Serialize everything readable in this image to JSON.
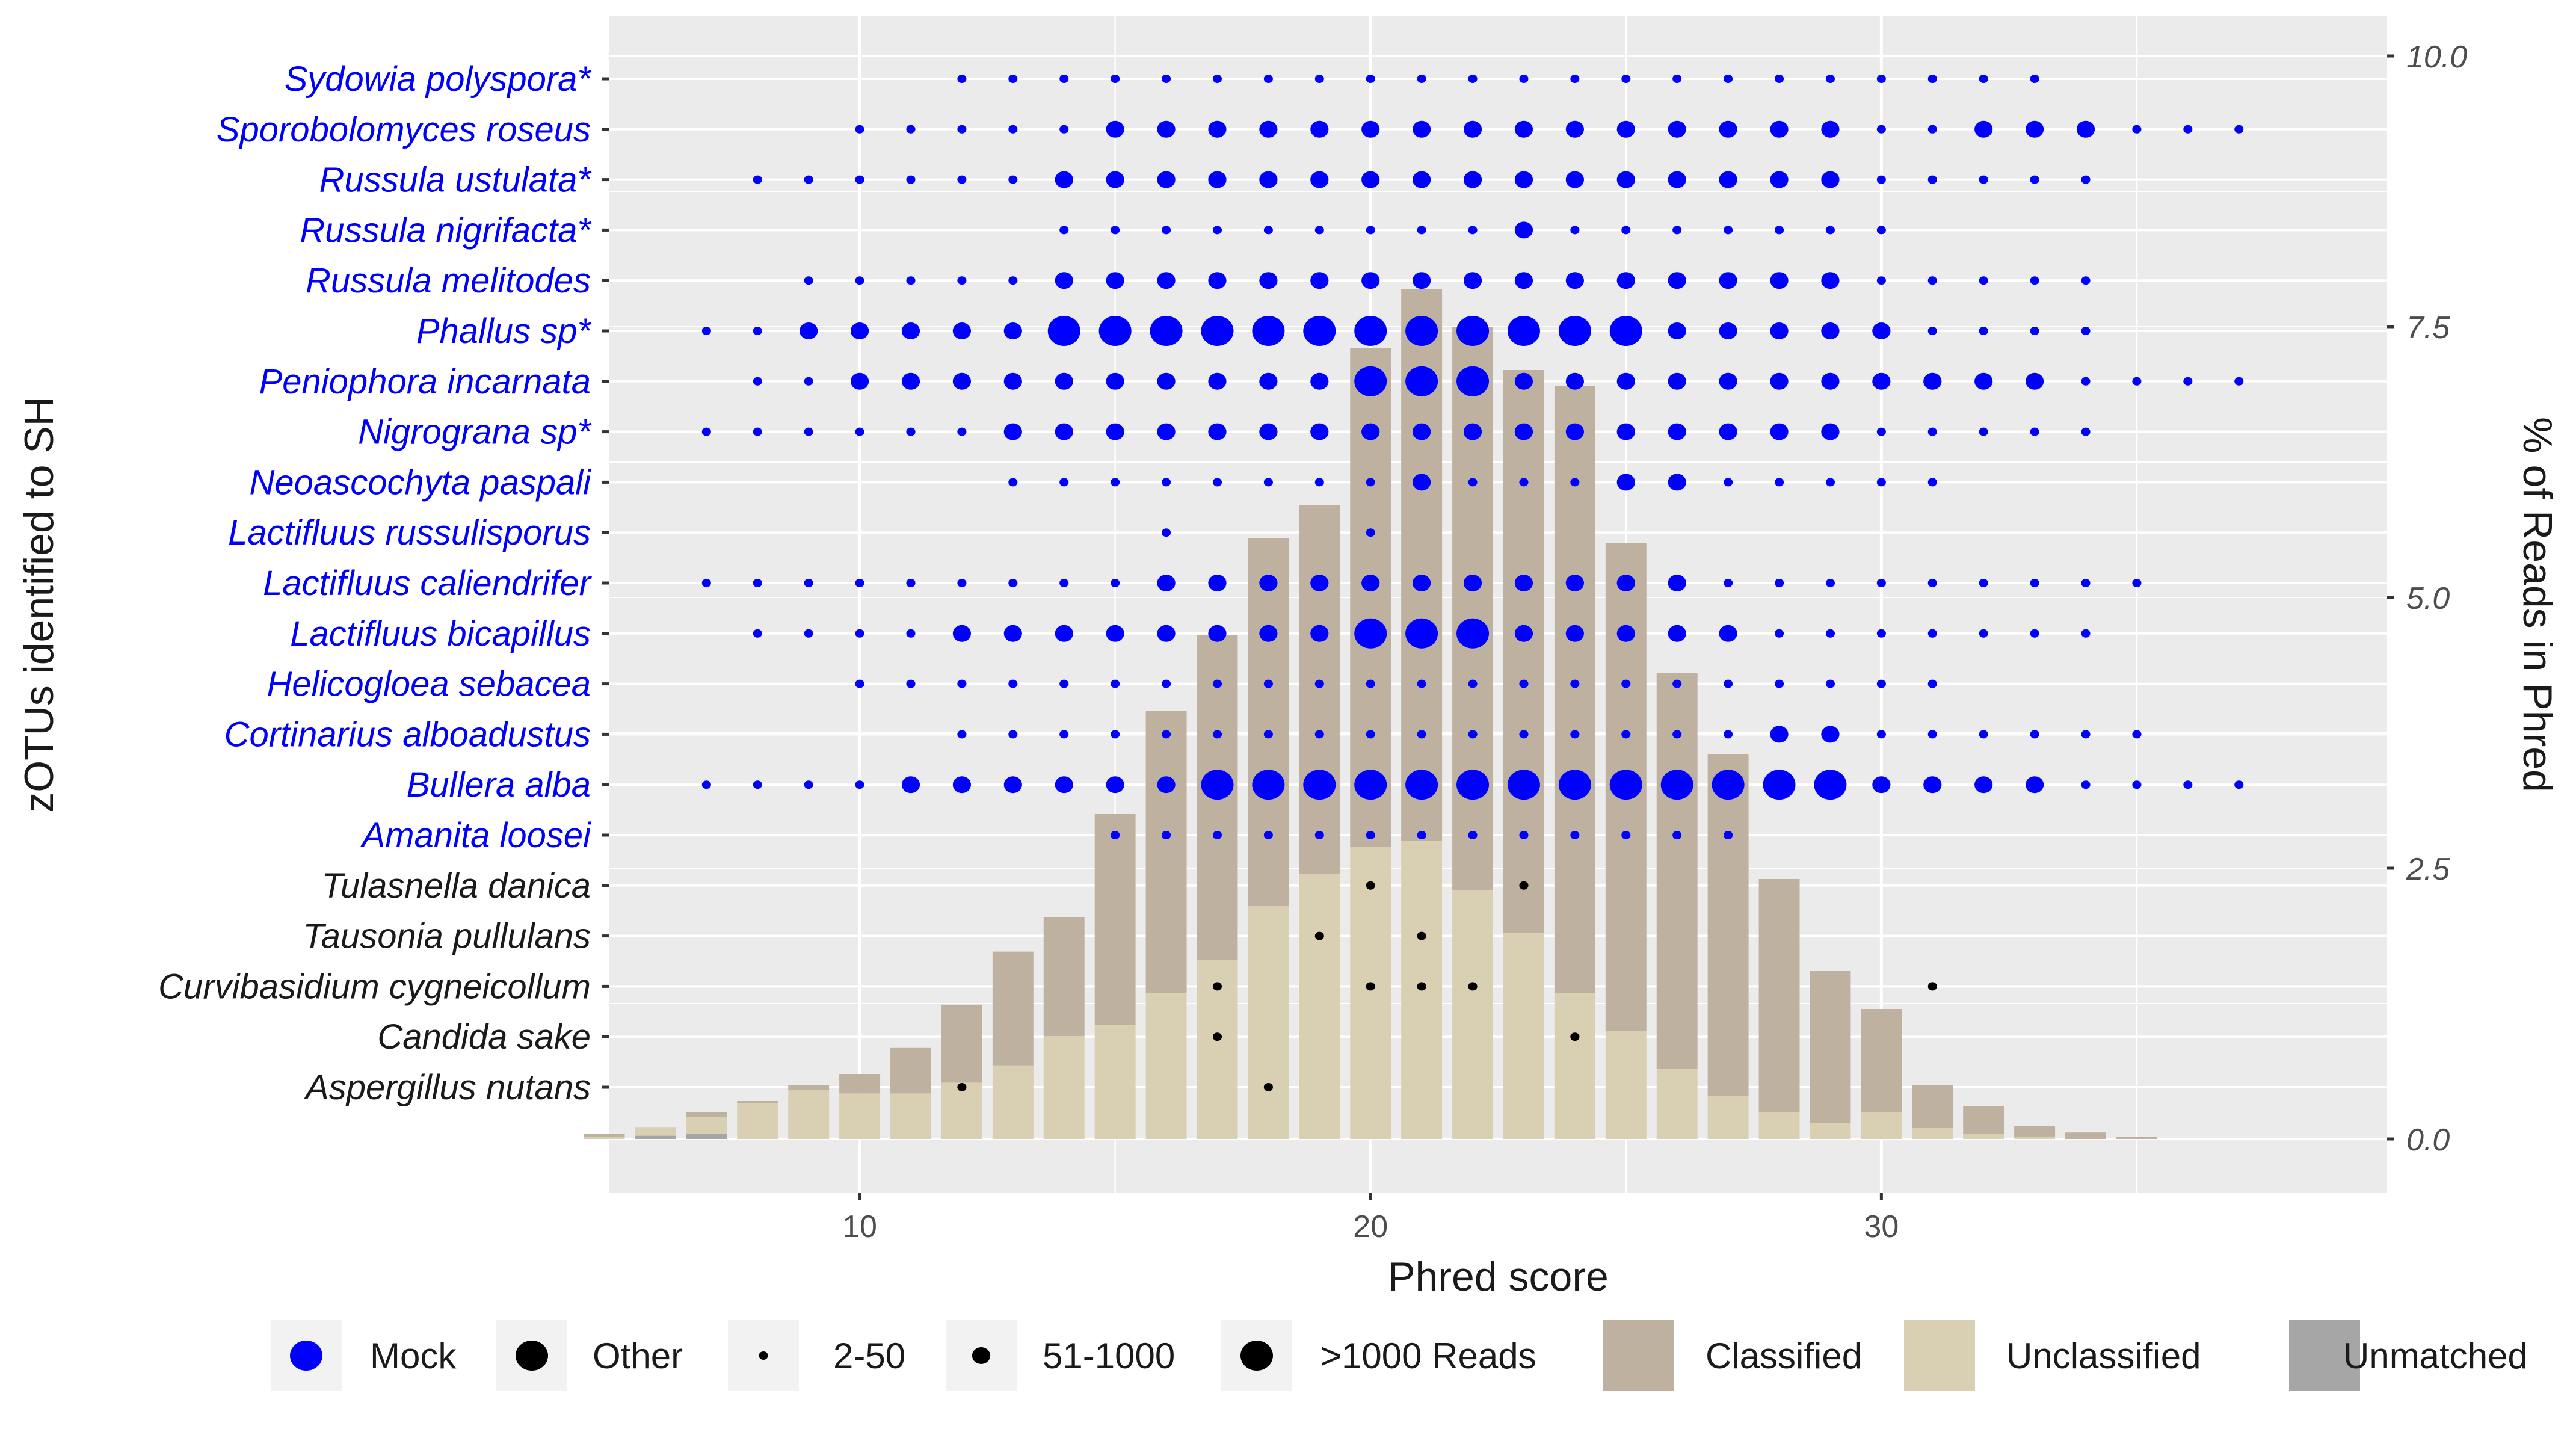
{
  "colors": {
    "mock": "#0000ff",
    "other": "#000000",
    "classified": "#bfb19f",
    "unclassified": "#d9cfb3",
    "unmatched": "#a6a6a6",
    "panel_bg": "#ebebeb",
    "grid": "#ffffff",
    "legend_key_bg": "#f2f2f2"
  },
  "chart_data": {
    "type": "scatter",
    "xlabel": "Phred score",
    "ylabel": "zOTUs identified to SH",
    "y2label": "% of Reads in Phred",
    "xlim": [
      5.1,
      39.9
    ],
    "x_ticks": [
      10,
      20,
      30
    ],
    "y2lim": [
      0,
      10
    ],
    "y2_ticks": [
      "0.0",
      "2.5",
      "5.0",
      "7.5",
      "10.0"
    ],
    "species": [
      {
        "name": "Sydowia polyspora*",
        "group": "Mock"
      },
      {
        "name": "Sporobolomyces roseus",
        "group": "Mock"
      },
      {
        "name": "Russula ustulata*",
        "group": "Mock"
      },
      {
        "name": "Russula nigrifacta*",
        "group": "Mock"
      },
      {
        "name": "Russula melitodes",
        "group": "Mock"
      },
      {
        "name": "Phallus sp*",
        "group": "Mock"
      },
      {
        "name": "Peniophora incarnata",
        "group": "Mock"
      },
      {
        "name": "Nigrograna sp*",
        "group": "Mock"
      },
      {
        "name": "Neoascochyta paspali",
        "group": "Mock"
      },
      {
        "name": "Lactifluus russulisporus",
        "group": "Mock"
      },
      {
        "name": "Lactifluus caliendrifer",
        "group": "Mock"
      },
      {
        "name": "Lactifluus bicapillus",
        "group": "Mock"
      },
      {
        "name": "Helicogloea sebacea",
        "group": "Mock"
      },
      {
        "name": "Cortinarius alboadustus",
        "group": "Mock"
      },
      {
        "name": "Bullera alba",
        "group": "Mock"
      },
      {
        "name": "Amanita loosei",
        "group": "Mock"
      },
      {
        "name": "Tulasnella danica",
        "group": "Other"
      },
      {
        "name": "Tausonia pullulans",
        "group": "Other"
      },
      {
        "name": "Curvibasidium cygneicollum",
        "group": "Other"
      },
      {
        "name": "Candida sake",
        "group": "Other"
      },
      {
        "name": "Aspergillus nutans",
        "group": "Other"
      }
    ],
    "points_by_species": [
      "12:1 13:1 14:1 15:1 16:1 17:1 18:1 19:1 20:1 21:1 22:1 23:1 24:1 25:1 26:1 27:1 28:1 29:1 30:1 31:1 32:1 33:1",
      "10:1 11:1 12:1 13:1 14:1 15:2 16:2 17:2 18:2 19:2 20:2 21:2 22:2 23:2 24:2 25:2 26:2 27:2 28:2 29:2 30:1 31:1 32:2 33:2 34:2 35:1 36:1 37:1",
      "8:1 9:1 10:1 11:1 12:1 13:1 14:2 15:2 16:2 17:2 18:2 19:2 20:2 21:2 22:2 23:2 24:2 25:2 26:2 27:2 28:2 29:2 30:1 31:1 32:1 33:1 34:1",
      "14:1 15:1 16:1 17:1 18:1 19:1 20:1 21:1 22:1 23:2 24:1 25:1 26:1 27:1 28:1 29:1 30:1",
      "9:1 10:1 11:1 12:1 13:1 14:2 15:2 16:2 17:2 18:2 19:2 20:2 21:2 22:2 23:2 24:2 25:2 26:2 27:2 28:2 29:2 30:1 31:1 32:1 33:1 34:1",
      "7:1 8:1 9:2 10:2 11:2 12:2 13:2 14:3 15:3 16:3 17:3 18:3 19:3 20:3 21:3 22:3 23:3 24:3 25:3 26:2 27:2 28:2 29:2 30:2 31:1 32:1 33:1 34:1",
      "8:1 9:1 10:2 11:2 12:2 13:2 14:2 15:2 16:2 17:2 18:2 19:2 20:3 21:3 22:3 23:2 24:2 25:2 26:2 27:2 28:2 29:2 30:2 31:2 32:2 33:2 34:1 35:1 36:1 37:1",
      "7:1 8:1 9:1 10:1 11:1 12:1 13:2 14:2 15:2 16:2 17:2 18:2 19:2 20:2 21:2 22:2 23:2 24:2 25:2 26:2 27:2 28:2 29:2 30:1 31:1 32:1 33:1 34:1",
      "13:1 14:1 15:1 16:1 17:1 18:1 19:1 20:1 21:2 22:1 23:1 24:1 25:2 26:2 27:1 28:1 29:1 30:1 31:1",
      "16:1 20:1",
      "7:1 8:1 9:1 10:1 11:1 12:1 13:1 14:1 15:1 16:2 17:2 18:2 19:2 20:2 21:2 22:2 23:2 24:2 25:2 26:2 27:1 28:1 29:1 30:1 31:1 32:1 33:1 34:1 35:1",
      "8:1 9:1 10:1 11:1 12:2 13:2 14:2 15:2 16:2 17:2 18:2 19:2 20:3 21:3 22:3 23:2 24:2 25:2 26:2 27:2 28:1 29:1 30:1 31:1 32:1 33:1 34:1",
      "10:1 11:1 12:1 13:1 14:1 15:1 16:1 17:1 18:1 19:1 20:1 21:1 22:1 23:1 24:1 25:1 26:1 27:1 28:1 29:1 30:1 31:1",
      "12:1 13:1 14:1 15:1 16:1 17:1 18:1 19:1 20:1 21:1 22:1 23:1 24:1 25:1 26:1 27:1 28:2 29:2 30:1 31:1 32:1 33:1 34:1 35:1",
      "7:1 8:1 9:1 10:1 11:2 12:2 13:2 14:2 15:2 16:2 17:3 18:3 19:3 20:3 21:3 22:3 23:3 24:3 25:3 26:3 27:3 28:3 29:3 30:2 31:2 32:2 33:2 34:1 35:1 36:1 37:1",
      "15:1 16:1 17:1 18:1 19:1 20:1 21:1 22:1 23:1 24:1 25:1 26:1 27:1",
      "20:1 23:1",
      "19:1 21:1",
      "17:1 20:1 21:1 22:1 31:1",
      "17:1 24:1",
      "12:1 18:1"
    ],
    "bars": {
      "x": [
        5,
        6,
        7,
        8,
        9,
        10,
        11,
        12,
        13,
        14,
        15,
        16,
        17,
        18,
        19,
        20,
        21,
        22,
        23,
        24,
        25,
        26,
        27,
        28,
        29,
        30,
        31,
        32,
        33,
        34,
        35
      ],
      "classified": [
        0.03,
        0.0,
        0.05,
        0.02,
        0.05,
        0.18,
        0.42,
        0.72,
        1.05,
        1.1,
        1.95,
        2.6,
        3.0,
        3.4,
        3.4,
        4.6,
        5.1,
        5.2,
        5.2,
        5.6,
        4.5,
        3.65,
        3.15,
        2.15,
        1.4,
        0.95,
        0.4,
        0.25,
        0.1,
        0.06,
        0.02
      ],
      "unclassified": [
        0.02,
        0.08,
        0.15,
        0.33,
        0.45,
        0.42,
        0.42,
        0.52,
        0.68,
        0.95,
        1.05,
        1.35,
        1.65,
        2.15,
        2.45,
        2.7,
        2.75,
        2.3,
        1.9,
        1.35,
        1.0,
        0.65,
        0.4,
        0.25,
        0.15,
        0.25,
        0.1,
        0.05,
        0.02,
        0.0,
        0.0
      ],
      "unmatched": [
        0.0,
        0.03,
        0.05,
        0.0,
        0.0,
        0.0,
        0.0,
        0.0,
        0.0,
        0.0,
        0.0,
        0.0,
        0.0,
        0.0,
        0.0,
        0.0,
        0.0,
        0.0,
        0.0,
        0.0,
        0.0,
        0.0,
        0.0,
        0.0,
        0.0,
        0.0,
        0.0,
        0.0,
        0.0,
        0.0,
        0.0
      ]
    },
    "point_size_classes": [
      "2-50",
      "51-1000",
      ">1000 Reads"
    ],
    "legend": {
      "placement": "bottom",
      "items": [
        {
          "label": "Mock",
          "kind": "group",
          "color": "#0000ff"
        },
        {
          "label": "Other",
          "kind": "group",
          "color": "#000000"
        },
        {
          "label": "2-50",
          "kind": "size",
          "size_class": 1
        },
        {
          "label": "51-1000",
          "kind": "size",
          "size_class": 2
        },
        {
          "label": ">1000 Reads",
          "kind": "size",
          "size_class": 3
        },
        {
          "label": "Classified",
          "kind": "fill",
          "color": "#bfb19f"
        },
        {
          "label": "Unclassified",
          "kind": "fill",
          "color": "#d9cfb3"
        },
        {
          "label": "Unmatched",
          "kind": "fill",
          "color": "#a6a6a6"
        }
      ]
    },
    "grid": true
  }
}
